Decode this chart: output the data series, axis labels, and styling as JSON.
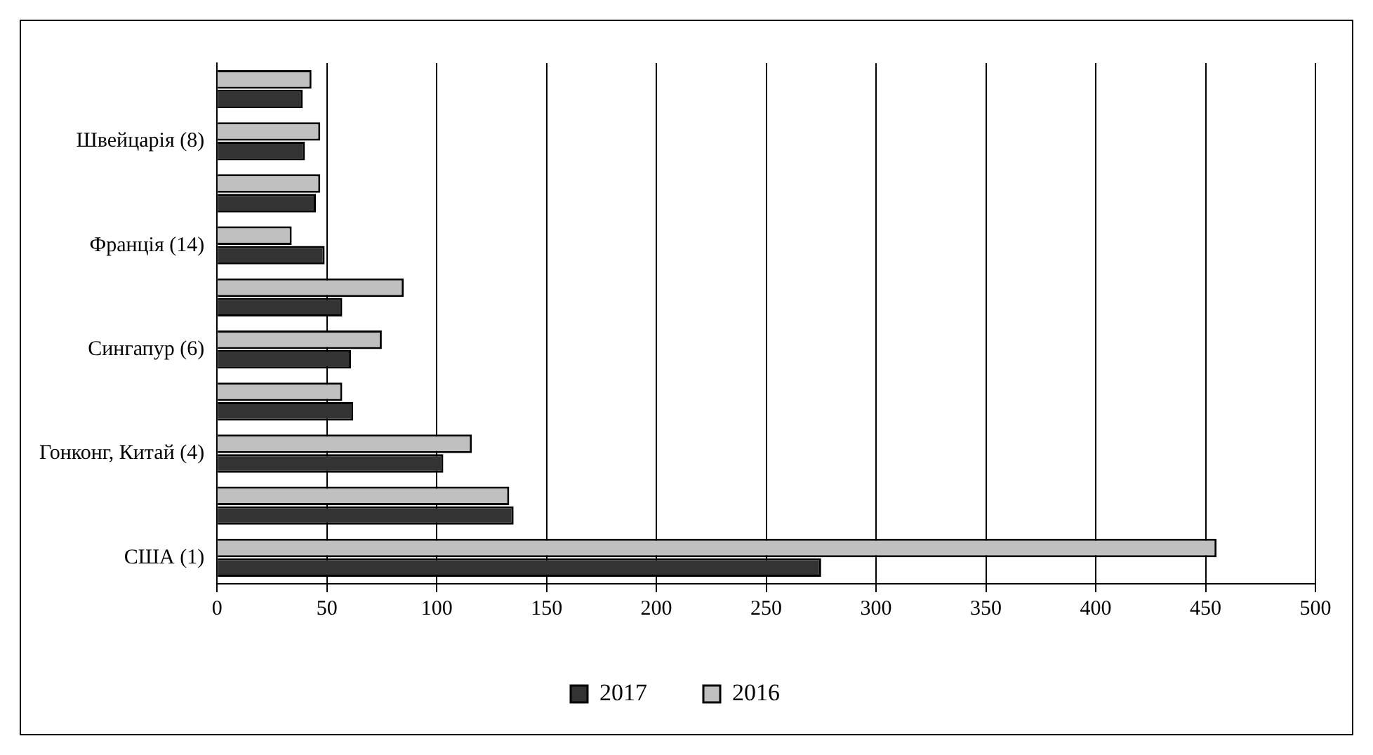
{
  "chart_data": {
    "type": "bar",
    "orientation": "horizontal",
    "categories": [
      null,
      "Швейцарія (8)",
      null,
      "Франція (14)",
      null,
      "Сингапур (6)",
      null,
      "Гонконг, Китай (4)",
      null,
      "США (1)"
    ],
    "series": [
      {
        "name": "2017",
        "color": "#333333",
        "values": [
          39,
          40,
          45,
          49,
          57,
          61,
          62,
          103,
          135,
          275
        ]
      },
      {
        "name": "2016",
        "color": "#c0c0c0",
        "values": [
          43,
          47,
          47,
          34,
          85,
          75,
          57,
          116,
          133,
          455
        ]
      }
    ],
    "xlim": [
      0,
      500
    ],
    "xticks": [
      0,
      50,
      100,
      150,
      200,
      250,
      300,
      350,
      400,
      450,
      500
    ],
    "grid": "x",
    "legend": "bottom"
  }
}
